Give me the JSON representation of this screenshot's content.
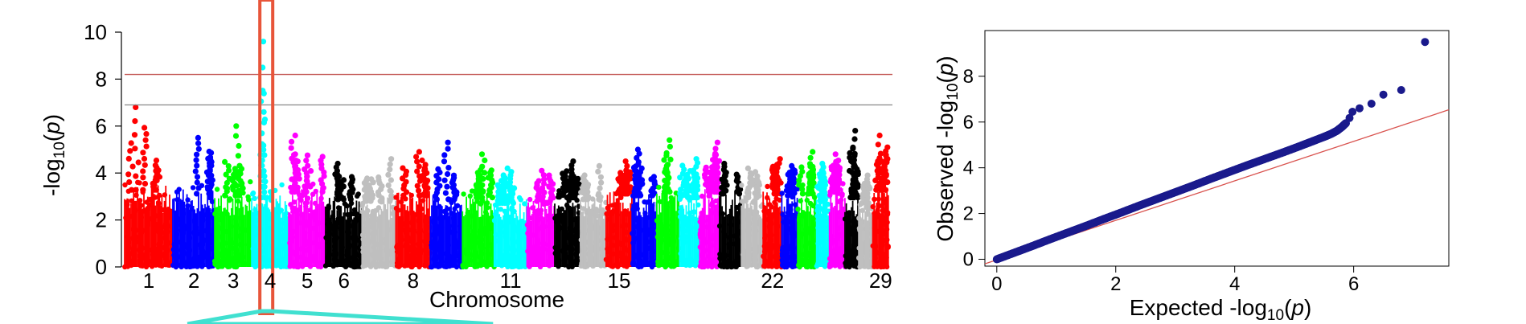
{
  "chart_data": [
    {
      "type": "scatter",
      "subtype": "manhattan",
      "title": "",
      "xlabel": "Chromosome",
      "ylabel_prefix": "-log",
      "ylabel_sub": "10",
      "ylabel_var": "p",
      "ylim": [
        0,
        10
      ],
      "yticks": [
        0,
        2,
        4,
        6,
        8,
        10
      ],
      "grid": false,
      "colors": [
        "#ff0000",
        "#0000ff",
        "#00ff00",
        "#00ffff",
        "#ff00ff",
        "#000000",
        "#bfbfbf"
      ],
      "highlight_color": "#e8553a",
      "thresholds": [
        {
          "value": 8.2,
          "color": "#c0504d"
        },
        {
          "value": 6.9,
          "color": "#888888"
        }
      ],
      "chromosome_labels": [
        {
          "label": "1",
          "chrom": 1
        },
        {
          "label": "2",
          "chrom": 2
        },
        {
          "label": "3",
          "chrom": 3
        },
        {
          "label": "4",
          "chrom": 4
        },
        {
          "label": "5",
          "chrom": 5
        },
        {
          "label": "6",
          "chrom": 6
        },
        {
          "label": "8",
          "chrom": 8
        },
        {
          "label": "11",
          "chrom": 11
        },
        {
          "label": "15",
          "chrom": 15
        },
        {
          "label": "22",
          "chrom": 22
        },
        {
          "label": "29",
          "chrom": 29
        }
      ],
      "chromosomes": [
        {
          "chrom": 1,
          "color": "#ff0000",
          "length": 158,
          "base": 4.1,
          "peak": 6.8
        },
        {
          "chrom": 2,
          "color": "#0000ff",
          "length": 137,
          "base": 3.9,
          "peak": 5.5
        },
        {
          "chrom": 3,
          "color": "#00ff00",
          "length": 121,
          "base": 3.8,
          "peak": 6.0
        },
        {
          "chrom": 4,
          "color": "#00ffff",
          "length": 121,
          "base": 3.7,
          "peak": 9.6
        },
        {
          "chrom": 5,
          "color": "#ff00ff",
          "length": 121,
          "base": 4.0,
          "peak": 5.6
        },
        {
          "chrom": 6,
          "color": "#000000",
          "length": 119,
          "base": 3.6,
          "peak": 4.4
        },
        {
          "chrom": 7,
          "color": "#bfbfbf",
          "length": 111,
          "base": 3.5,
          "peak": 4.6
        },
        {
          "chrom": 8,
          "color": "#ff0000",
          "length": 113,
          "base": 3.8,
          "peak": 4.9
        },
        {
          "chrom": 9,
          "color": "#0000ff",
          "length": 105,
          "base": 3.6,
          "peak": 5.3
        },
        {
          "chrom": 10,
          "color": "#00ff00",
          "length": 104,
          "base": 3.7,
          "peak": 4.8
        },
        {
          "chrom": 11,
          "color": "#00ffff",
          "length": 107,
          "base": 3.4,
          "peak": 4.2
        },
        {
          "chrom": 12,
          "color": "#ff00ff",
          "length": 91,
          "base": 3.5,
          "peak": 4.1
        },
        {
          "chrom": 13,
          "color": "#000000",
          "length": 84,
          "base": 3.7,
          "peak": 4.5
        },
        {
          "chrom": 14,
          "color": "#bfbfbf",
          "length": 84,
          "base": 3.6,
          "peak": 4.3
        },
        {
          "chrom": 15,
          "color": "#ff0000",
          "length": 85,
          "base": 3.9,
          "peak": 4.5
        },
        {
          "chrom": 16,
          "color": "#0000ff",
          "length": 81,
          "base": 3.8,
          "peak": 5.0
        },
        {
          "chrom": 17,
          "color": "#00ff00",
          "length": 75,
          "base": 4.0,
          "peak": 5.4
        },
        {
          "chrom": 18,
          "color": "#00ffff",
          "length": 66,
          "base": 3.7,
          "peak": 4.6
        },
        {
          "chrom": 19,
          "color": "#ff00ff",
          "length": 64,
          "base": 4.0,
          "peak": 5.3
        },
        {
          "chrom": 20,
          "color": "#000000",
          "length": 72,
          "base": 3.9,
          "peak": 4.4
        },
        {
          "chrom": 21,
          "color": "#bfbfbf",
          "length": 71,
          "base": 3.7,
          "peak": 4.2
        },
        {
          "chrom": 22,
          "color": "#ff0000",
          "length": 61,
          "base": 3.9,
          "peak": 4.6
        },
        {
          "chrom": 23,
          "color": "#0000ff",
          "length": 52,
          "base": 3.8,
          "peak": 4.3
        },
        {
          "chrom": 24,
          "color": "#00ff00",
          "length": 62,
          "base": 3.9,
          "peak": 4.9
        },
        {
          "chrom": 25,
          "color": "#00ffff",
          "length": 42,
          "base": 3.8,
          "peak": 4.4
        },
        {
          "chrom": 26,
          "color": "#ff00ff",
          "length": 51,
          "base": 4.0,
          "peak": 4.8
        },
        {
          "chrom": 27,
          "color": "#000000",
          "length": 45,
          "base": 3.7,
          "peak": 5.8
        },
        {
          "chrom": 28,
          "color": "#bfbfbf",
          "length": 46,
          "base": 3.4,
          "peak": 3.9
        },
        {
          "chrom": 29,
          "color": "#ff0000",
          "length": 51,
          "base": 4.1,
          "peak": 5.6
        }
      ],
      "highlight_chrom": 4
    },
    {
      "type": "scatter",
      "subtype": "qq",
      "title": "",
      "xlabel_prefix": "Expected -log",
      "xlabel_sub": "10",
      "xlabel_var": "p",
      "ylabel_prefix": "Observed -log",
      "ylabel_sub": "10",
      "ylabel_var": "p",
      "xlim": [
        -0.2,
        7.6
      ],
      "ylim": [
        -0.3,
        10
      ],
      "xticks": [
        0,
        2,
        4,
        6
      ],
      "yticks": [
        0,
        2,
        4,
        6,
        8
      ],
      "grid": false,
      "point_color": "#1a1a8c",
      "diagonal_color": "#d9534f",
      "points": [
        [
          0.0,
          0.0
        ],
        [
          0.3,
          0.29
        ],
        [
          0.6,
          0.58
        ],
        [
          0.9,
          0.88
        ],
        [
          1.2,
          1.17
        ],
        [
          1.5,
          1.46
        ],
        [
          1.8,
          1.76
        ],
        [
          2.1,
          2.05
        ],
        [
          2.4,
          2.35
        ],
        [
          2.7,
          2.64
        ],
        [
          3.0,
          2.93
        ],
        [
          3.3,
          3.22
        ],
        [
          3.6,
          3.52
        ],
        [
          3.9,
          3.81
        ],
        [
          4.2,
          4.1
        ],
        [
          4.5,
          4.38
        ],
        [
          4.8,
          4.66
        ],
        [
          5.1,
          4.95
        ],
        [
          5.3,
          5.15
        ],
        [
          5.5,
          5.35
        ],
        [
          5.62,
          5.48
        ],
        [
          5.72,
          5.62
        ],
        [
          5.8,
          5.78
        ],
        [
          5.87,
          5.95
        ],
        [
          5.93,
          6.18
        ],
        [
          5.98,
          6.45
        ],
        [
          6.1,
          6.6
        ],
        [
          6.3,
          6.8
        ],
        [
          6.5,
          7.2
        ],
        [
          6.8,
          7.4
        ],
        [
          7.2,
          9.5
        ]
      ]
    }
  ]
}
